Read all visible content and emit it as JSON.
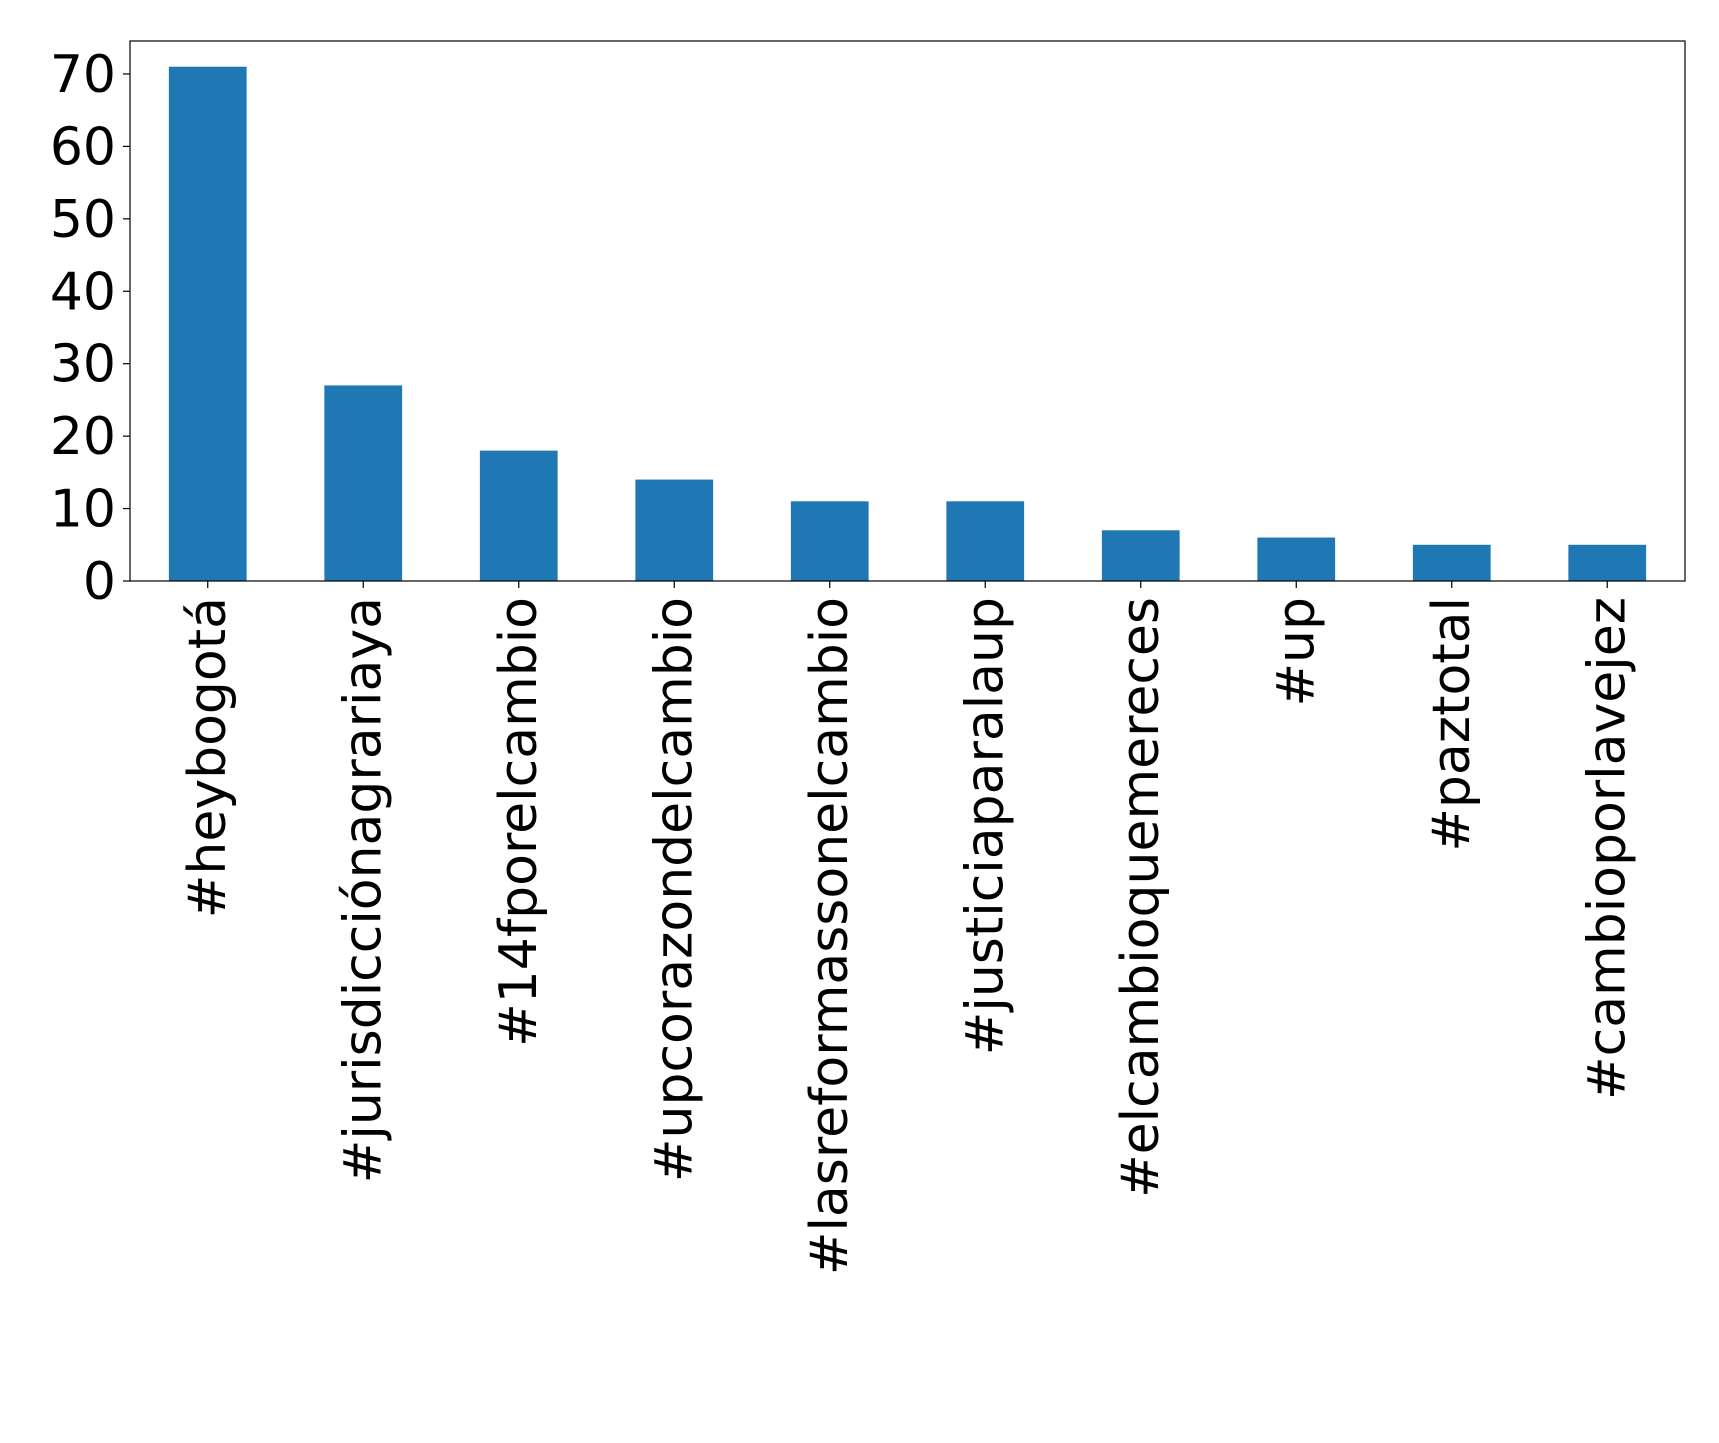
{
  "chart_data": {
    "type": "bar",
    "title": "",
    "xlabel": "",
    "ylabel": "",
    "categories": [
      "#heybogotá",
      "#jurisdicciónagrariaya",
      "#14fporelcambio",
      "#upcorazondelcambio",
      "#lasreformassonelcambio",
      "#justiciaparalaup",
      "#elcambioquemereces",
      "#up",
      "#paztotal",
      "#cambioporlavejez"
    ],
    "values": [
      71,
      27,
      18,
      14,
      11,
      11,
      7,
      6,
      5,
      5
    ],
    "ylim": [
      0,
      74.55
    ],
    "yticks": [
      0,
      10,
      20,
      30,
      40,
      50,
      60,
      70
    ],
    "grid": false,
    "legend": "none",
    "bar_color": "#1f77b4"
  }
}
